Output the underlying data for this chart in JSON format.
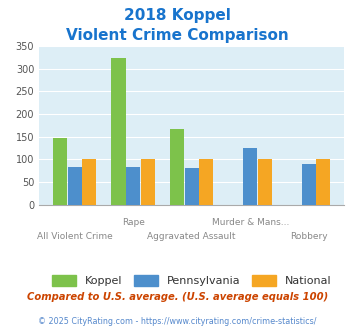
{
  "title_line1": "2018 Koppel",
  "title_line2": "Violent Crime Comparison",
  "title_color": "#1874cd",
  "row1_labels": [
    "",
    "Rape",
    "",
    "Murder & Mans...",
    ""
  ],
  "row2_labels": [
    "All Violent Crime",
    "",
    "Aggravated Assault",
    "",
    "Robbery"
  ],
  "koppel_values": [
    147,
    325,
    168,
    0,
    0
  ],
  "pennsylvania_values": [
    82,
    84,
    80,
    125,
    90
  ],
  "national_values": [
    100,
    100,
    100,
    100,
    100
  ],
  "koppel_color": "#7dc24b",
  "pennsylvania_color": "#4d8fcc",
  "national_color": "#f5a623",
  "ylim": [
    0,
    350
  ],
  "yticks": [
    0,
    50,
    100,
    150,
    200,
    250,
    300,
    350
  ],
  "bg_color": "#ddeef6",
  "legend_labels": [
    "Koppel",
    "Pennsylvania",
    "National"
  ],
  "footnote1": "Compared to U.S. average. (U.S. average equals 100)",
  "footnote2": "© 2025 CityRating.com - https://www.cityrating.com/crime-statistics/",
  "footnote1_color": "#cc4400",
  "footnote2_color": "#5588cc"
}
